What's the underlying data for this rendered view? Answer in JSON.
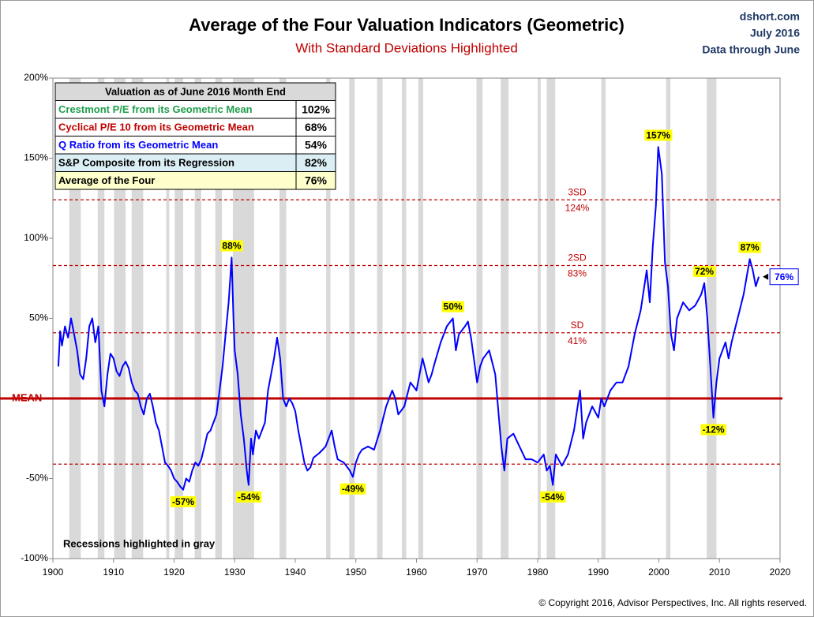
{
  "chart_data": {
    "type": "line",
    "title": "Average of the Four Valuation Indicators (Geometric)",
    "subtitle": "With Standard Deviations Highlighted",
    "source_lines": [
      "dshort.com",
      "July 2016",
      "Data through June"
    ],
    "copyright": "© Copyright 2016, Advisor Perspectives, Inc. All rights reserved.",
    "recession_note": "Recessions highlighted in gray",
    "color": "#0000ff",
    "x": [
      1900.9,
      1901.2,
      1901.5,
      1902,
      1902.5,
      1903,
      1903.5,
      1904,
      1904.5,
      1905,
      1905.5,
      1906,
      1906.5,
      1907,
      1907.5,
      1908,
      1908.5,
      1909,
      1909.5,
      1910,
      1910.5,
      1911,
      1911.5,
      1912,
      1912.5,
      1913,
      1913.5,
      1914,
      1914.5,
      1915,
      1915.5,
      1916,
      1916.5,
      1917,
      1917.5,
      1918,
      1918.5,
      1919,
      1919.5,
      1920,
      1920.5,
      1921,
      1921.5,
      1922,
      1922.5,
      1923,
      1923.5,
      1924,
      1924.5,
      1925,
      1925.5,
      1926,
      1926.5,
      1927,
      1927.5,
      1928,
      1928.5,
      1929,
      1929.5,
      1929.8,
      1930,
      1930.5,
      1931,
      1931.5,
      1932,
      1932.3,
      1932.7,
      1933,
      1933.5,
      1934,
      1935,
      1935.5,
      1936,
      1936.5,
      1937,
      1937.5,
      1938,
      1938.5,
      1939,
      1939.5,
      1940,
      1940.5,
      1941,
      1941.5,
      1942,
      1942.5,
      1943,
      1944,
      1945,
      1946,
      1946.5,
      1947,
      1948,
      1949,
      1949.5,
      1950,
      1950.5,
      1951,
      1952,
      1953,
      1954,
      1955,
      1956,
      1956.5,
      1957,
      1958,
      1959,
      1960,
      1961,
      1962,
      1962.5,
      1963,
      1964,
      1965,
      1966,
      1966.5,
      1967,
      1968,
      1968.5,
      1969,
      1970,
      1970.5,
      1971,
      1972,
      1973,
      1974,
      1974.5,
      1975,
      1976,
      1977,
      1978,
      1979,
      1980,
      1981,
      1981.5,
      1982,
      1982.5,
      1983,
      1984,
      1985,
      1986,
      1987,
      1987.5,
      1988,
      1989,
      1990,
      1990.5,
      1991,
      1992,
      1993,
      1994,
      1995,
      1996,
      1997,
      1998,
      1998.5,
      1999,
      1999.5,
      1999.9,
      2000.5,
      2001,
      2001.5,
      2002,
      2002.5,
      2003,
      2004,
      2005,
      2006,
      2007,
      2007.5,
      2008,
      2008.5,
      2009,
      2009.5,
      2010,
      2011,
      2011.5,
      2012,
      2013,
      2014,
      2015,
      2015.5,
      2016,
      2016.5
    ],
    "values": [
      20,
      42,
      33,
      45,
      38,
      50,
      40,
      30,
      15,
      12,
      25,
      45,
      50,
      35,
      45,
      5,
      -5,
      15,
      28,
      25,
      17,
      14,
      20,
      23,
      19,
      10,
      5,
      3,
      -5,
      -10,
      0,
      3,
      -5,
      -15,
      -20,
      -30,
      -40,
      -42,
      -45,
      -50,
      -52,
      -55,
      -57,
      -50,
      -52,
      -45,
      -40,
      -42,
      -38,
      -30,
      -22,
      -20,
      -15,
      -10,
      5,
      20,
      40,
      60,
      88,
      50,
      30,
      15,
      -10,
      -25,
      -45,
      -54,
      -25,
      -35,
      -20,
      -25,
      -15,
      5,
      15,
      25,
      38,
      25,
      0,
      -5,
      0,
      -3,
      -8,
      -20,
      -30,
      -40,
      -45,
      -43,
      -37,
      -34,
      -30,
      -20,
      -30,
      -38,
      -40,
      -45,
      -49,
      -40,
      -35,
      -32,
      -30,
      -32,
      -20,
      -5,
      5,
      0,
      -10,
      -5,
      10,
      5,
      25,
      10,
      15,
      22,
      35,
      45,
      50,
      30,
      40,
      45,
      48,
      38,
      10,
      20,
      25,
      30,
      15,
      -30,
      -45,
      -25,
      -22,
      -30,
      -38,
      -38,
      -40,
      -35,
      -45,
      -42,
      -54,
      -35,
      -42,
      -35,
      -20,
      5,
      -25,
      -15,
      -5,
      -12,
      0,
      -5,
      5,
      10,
      10,
      20,
      40,
      55,
      80,
      60,
      95,
      120,
      157,
      140,
      85,
      70,
      40,
      30,
      50,
      60,
      55,
      58,
      65,
      72,
      50,
      20,
      -12,
      10,
      25,
      35,
      25,
      35,
      50,
      65,
      87,
      80,
      70,
      76
    ],
    "recessions": [
      [
        1902.7,
        1904.6
      ],
      [
        1907.4,
        1908.5
      ],
      [
        1910.1,
        1912.0
      ],
      [
        1913.0,
        1914.9
      ],
      [
        1918.7,
        1919.2
      ],
      [
        1920.1,
        1921.5
      ],
      [
        1923.4,
        1924.5
      ],
      [
        1926.8,
        1927.9
      ],
      [
        1929.7,
        1933.2
      ],
      [
        1937.4,
        1938.5
      ],
      [
        1945.1,
        1945.8
      ],
      [
        1948.9,
        1949.8
      ],
      [
        1953.5,
        1954.4
      ],
      [
        1957.6,
        1958.3
      ],
      [
        1960.3,
        1961.1
      ],
      [
        1969.9,
        1970.9
      ],
      [
        1973.9,
        1975.2
      ],
      [
        1980.0,
        1980.5
      ],
      [
        1981.5,
        1982.9
      ],
      [
        1990.5,
        1991.2
      ],
      [
        2001.2,
        2001.9
      ],
      [
        2007.9,
        2009.5
      ]
    ],
    "mean_line": {
      "value": 0,
      "label": "MEAN"
    },
    "sd_lines": [
      {
        "value": 124,
        "name": "3SD",
        "label": "124%"
      },
      {
        "value": 83,
        "name": "2SD",
        "label": "83%"
      },
      {
        "value": 41,
        "name": "SD",
        "label": "41%"
      },
      {
        "value": -41
      }
    ],
    "annotations": [
      {
        "x": 1929.5,
        "value": 88,
        "label": "88%"
      },
      {
        "x": 1921.5,
        "value": -57,
        "label": "-57%"
      },
      {
        "x": 1932.3,
        "value": -54,
        "label": "-54%"
      },
      {
        "x": 1949.5,
        "value": -49,
        "label": "-49%"
      },
      {
        "x": 1966,
        "value": 50,
        "label": "50%"
      },
      {
        "x": 1982.5,
        "value": -54,
        "label": "-54%"
      },
      {
        "x": 1999.9,
        "value": 157,
        "label": "157%"
      },
      {
        "x": 2007.5,
        "value": 72,
        "label": "72%"
      },
      {
        "x": 2009,
        "value": -12,
        "label": "-12%"
      },
      {
        "x": 2015,
        "value": 87,
        "label": "87%"
      }
    ],
    "current": {
      "x": 2016.5,
      "value": 76,
      "label": "76%"
    },
    "xlim": [
      1900,
      2020
    ],
    "xticks": [
      1900,
      1910,
      1920,
      1930,
      1940,
      1950,
      1960,
      1970,
      1980,
      1990,
      2000,
      2010,
      2020
    ],
    "ylim": [
      -100,
      200
    ],
    "yticks": [
      {
        "value": -100,
        "label": "-100%"
      },
      {
        "value": -50,
        "label": "-50%"
      },
      {
        "value": 50,
        "label": "50%"
      },
      {
        "value": 100,
        "label": "100%"
      },
      {
        "value": 150,
        "label": "150%"
      },
      {
        "value": 200,
        "label": "200%"
      }
    ],
    "table": {
      "header": "Valuation as of June 2016 Month End",
      "rows": [
        {
          "label": "Crestmont P/E from its Geometric Mean",
          "value": "102%",
          "color": "#1e9e4a",
          "background": "#ffffff"
        },
        {
          "label": "Cyclical P/E 10 from its Geometric Mean",
          "value": "68%",
          "color": "#c00000",
          "background": "#ffffff"
        },
        {
          "label": "Q Ratio from its Geometric Mean",
          "value": "54%",
          "color": "#0000ff",
          "background": "#ffffff"
        },
        {
          "label": "S&P Composite from its Regression",
          "value": "82%",
          "color": "#000000",
          "background": "#dbeef4"
        },
        {
          "label": "Average of the Four",
          "value": "76%",
          "color": "#000000",
          "background": "#ffffcc"
        }
      ]
    }
  }
}
